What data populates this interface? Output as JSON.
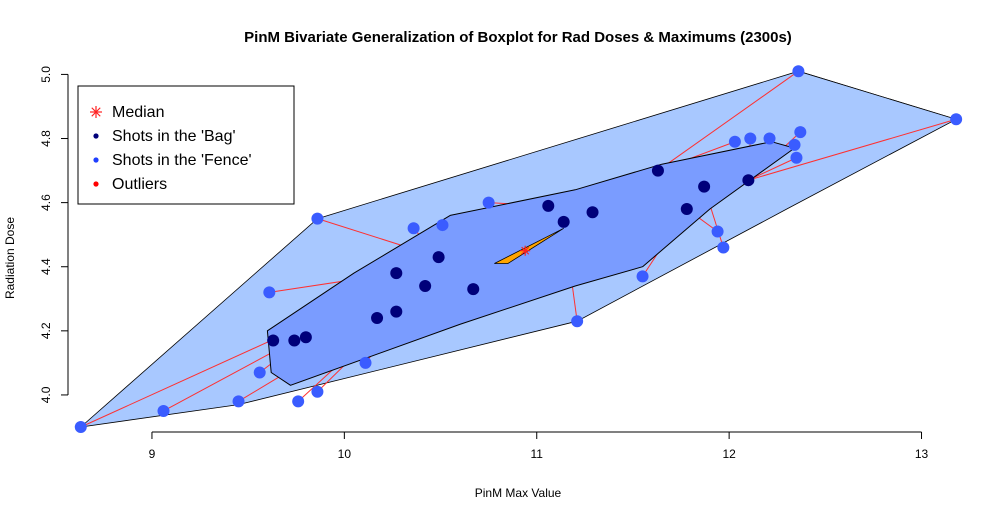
{
  "chart_data": {
    "type": "scatter",
    "title": "PinM Bivariate Generalization of Boxplot for Rad Doses & Maximums (2300s)",
    "xlabel": "PinM Max Value",
    "ylabel": "Radiation Dose",
    "xlim": [
      8.6,
      13.2
    ],
    "ylim": [
      3.9,
      5.02
    ],
    "x_ticks": [
      9,
      10,
      11,
      12,
      13
    ],
    "y_ticks": [
      4.0,
      4.2,
      4.4,
      4.6,
      4.8,
      5.0
    ],
    "x_tick_labels": [
      "9",
      "10",
      "11",
      "12",
      "13"
    ],
    "y_tick_labels": [
      "4.0",
      "4.2",
      "4.4",
      "4.6",
      "4.8",
      "5.0"
    ],
    "legend": {
      "position": "top-left",
      "entries": [
        {
          "label": "Median",
          "marker": "asterisk",
          "color": "#ff2020"
        },
        {
          "label": "Shots in the 'Bag'",
          "marker": "dot",
          "color": "#00007a"
        },
        {
          "label": "Shots in the 'Fence'",
          "marker": "dot",
          "color": "#1f3fff"
        },
        {
          "label": "Outliers",
          "marker": "dot",
          "color": "#ff0000"
        }
      ]
    },
    "median": {
      "x": 10.94,
      "y": 4.45
    },
    "bag_points": [
      {
        "x": 9.63,
        "y": 4.17
      },
      {
        "x": 9.74,
        "y": 4.17
      },
      {
        "x": 9.8,
        "y": 4.18
      },
      {
        "x": 10.17,
        "y": 4.24
      },
      {
        "x": 10.27,
        "y": 4.26
      },
      {
        "x": 10.27,
        "y": 4.38
      },
      {
        "x": 10.42,
        "y": 4.34
      },
      {
        "x": 10.49,
        "y": 4.43
      },
      {
        "x": 10.67,
        "y": 4.33
      },
      {
        "x": 11.06,
        "y": 4.59
      },
      {
        "x": 11.14,
        "y": 4.54
      },
      {
        "x": 11.29,
        "y": 4.57
      },
      {
        "x": 11.63,
        "y": 4.7
      },
      {
        "x": 11.78,
        "y": 4.58
      },
      {
        "x": 11.87,
        "y": 4.65
      },
      {
        "x": 12.1,
        "y": 4.67
      }
    ],
    "fence_points": [
      {
        "x": 8.63,
        "y": 3.9
      },
      {
        "x": 9.06,
        "y": 3.95
      },
      {
        "x": 9.45,
        "y": 3.98
      },
      {
        "x": 9.56,
        "y": 4.07
      },
      {
        "x": 9.61,
        "y": 4.32
      },
      {
        "x": 9.76,
        "y": 3.98
      },
      {
        "x": 9.86,
        "y": 4.55
      },
      {
        "x": 9.86,
        "y": 4.01
      },
      {
        "x": 10.11,
        "y": 4.1
      },
      {
        "x": 10.36,
        "y": 4.52
      },
      {
        "x": 10.51,
        "y": 4.53
      },
      {
        "x": 10.75,
        "y": 4.6
      },
      {
        "x": 11.21,
        "y": 4.23
      },
      {
        "x": 11.55,
        "y": 4.37
      },
      {
        "x": 11.94,
        "y": 4.51
      },
      {
        "x": 11.97,
        "y": 4.46
      },
      {
        "x": 12.03,
        "y": 4.79
      },
      {
        "x": 12.11,
        "y": 4.8
      },
      {
        "x": 12.21,
        "y": 4.8
      },
      {
        "x": 12.34,
        "y": 4.78
      },
      {
        "x": 12.35,
        "y": 4.74
      },
      {
        "x": 12.37,
        "y": 4.82
      },
      {
        "x": 12.36,
        "y": 5.01
      },
      {
        "x": 13.18,
        "y": 4.86
      }
    ],
    "loop_polygon": [
      {
        "x": 8.63,
        "y": 3.9
      },
      {
        "x": 12.36,
        "y": 5.01
      },
      {
        "x": 13.18,
        "y": 4.86
      },
      {
        "x": 12.4,
        "y": 4.76
      },
      {
        "x": 9.86,
        "y": 4.55
      },
      {
        "x": 9.61,
        "y": 4.32
      },
      {
        "x": 8.63,
        "y": 3.9
      }
    ],
    "fence_hull": [
      {
        "x": 8.63,
        "y": 3.9
      },
      {
        "x": 9.86,
        "y": 4.55
      },
      {
        "x": 12.36,
        "y": 5.01
      },
      {
        "x": 13.18,
        "y": 4.86
      },
      {
        "x": 12.3,
        "y": 4.58
      },
      {
        "x": 11.21,
        "y": 4.23
      },
      {
        "x": 9.45,
        "y": 3.97
      }
    ],
    "bag_hull": [
      {
        "x": 9.6,
        "y": 4.2
      },
      {
        "x": 10.05,
        "y": 4.38
      },
      {
        "x": 10.55,
        "y": 4.56
      },
      {
        "x": 11.2,
        "y": 4.64
      },
      {
        "x": 11.65,
        "y": 4.72
      },
      {
        "x": 12.22,
        "y": 4.79
      },
      {
        "x": 12.34,
        "y": 4.77
      },
      {
        "x": 11.9,
        "y": 4.58
      },
      {
        "x": 11.55,
        "y": 4.4
      },
      {
        "x": 11.2,
        "y": 4.34
      },
      {
        "x": 10.6,
        "y": 4.22
      },
      {
        "x": 9.72,
        "y": 4.03
      },
      {
        "x": 9.62,
        "y": 4.07
      }
    ],
    "median_region": [
      {
        "x": 10.78,
        "y": 4.41
      },
      {
        "x": 11.14,
        "y": 4.52
      },
      {
        "x": 10.85,
        "y": 4.41
      }
    ],
    "fence_lines": [
      {
        "from": [
          8.63,
          3.9
        ],
        "to": [
          9.62,
          4.17
        ]
      },
      {
        "from": [
          9.06,
          3.95
        ],
        "to": [
          9.74,
          4.17
        ]
      },
      {
        "from": [
          9.45,
          3.98
        ],
        "to": [
          10.17,
          4.24
        ]
      },
      {
        "from": [
          9.56,
          4.07
        ],
        "to": [
          9.8,
          4.18
        ]
      },
      {
        "from": [
          9.61,
          4.32
        ],
        "to": [
          10.27,
          4.38
        ]
      },
      {
        "from": [
          9.76,
          3.98
        ],
        "to": [
          10.27,
          4.26
        ]
      },
      {
        "from": [
          9.86,
          4.55
        ],
        "to": [
          10.49,
          4.43
        ]
      },
      {
        "from": [
          9.86,
          4.01
        ],
        "to": [
          10.42,
          4.34
        ]
      },
      {
        "from": [
          10.11,
          4.1
        ],
        "to": [
          10.42,
          4.34
        ]
      },
      {
        "from": [
          10.36,
          4.52
        ],
        "to": [
          10.49,
          4.43
        ]
      },
      {
        "from": [
          10.51,
          4.53
        ],
        "to": [
          10.67,
          4.33
        ]
      },
      {
        "from": [
          10.75,
          4.6
        ],
        "to": [
          11.06,
          4.59
        ]
      },
      {
        "from": [
          11.21,
          4.23
        ],
        "to": [
          11.14,
          4.54
        ]
      },
      {
        "from": [
          11.55,
          4.37
        ],
        "to": [
          11.78,
          4.58
        ]
      },
      {
        "from": [
          11.94,
          4.51
        ],
        "to": [
          11.78,
          4.58
        ]
      },
      {
        "from": [
          11.97,
          4.46
        ],
        "to": [
          11.87,
          4.65
        ]
      },
      {
        "from": [
          12.03,
          4.79
        ],
        "to": [
          11.63,
          4.7
        ]
      },
      {
        "from": [
          12.11,
          4.8
        ],
        "to": [
          12.1,
          4.67
        ]
      },
      {
        "from": [
          12.21,
          4.8
        ],
        "to": [
          12.1,
          4.67
        ]
      },
      {
        "from": [
          12.34,
          4.78
        ],
        "to": [
          12.1,
          4.67
        ]
      },
      {
        "from": [
          12.35,
          4.74
        ],
        "to": [
          12.1,
          4.67
        ]
      },
      {
        "from": [
          12.37,
          4.82
        ],
        "to": [
          12.1,
          4.67
        ]
      },
      {
        "from": [
          12.36,
          5.01
        ],
        "to": [
          11.63,
          4.7
        ]
      },
      {
        "from": [
          13.18,
          4.86
        ],
        "to": [
          12.1,
          4.67
        ]
      }
    ],
    "colors": {
      "loop_fill": "#a8c8ff",
      "bag_fill": "#7a9cff",
      "median_fill": "#ffa500",
      "bag_point": "#00007a",
      "fence_point": "#3a5cff",
      "fence_line": "#ff3030",
      "median_marker": "#ff2020",
      "outline": "#000000"
    }
  }
}
